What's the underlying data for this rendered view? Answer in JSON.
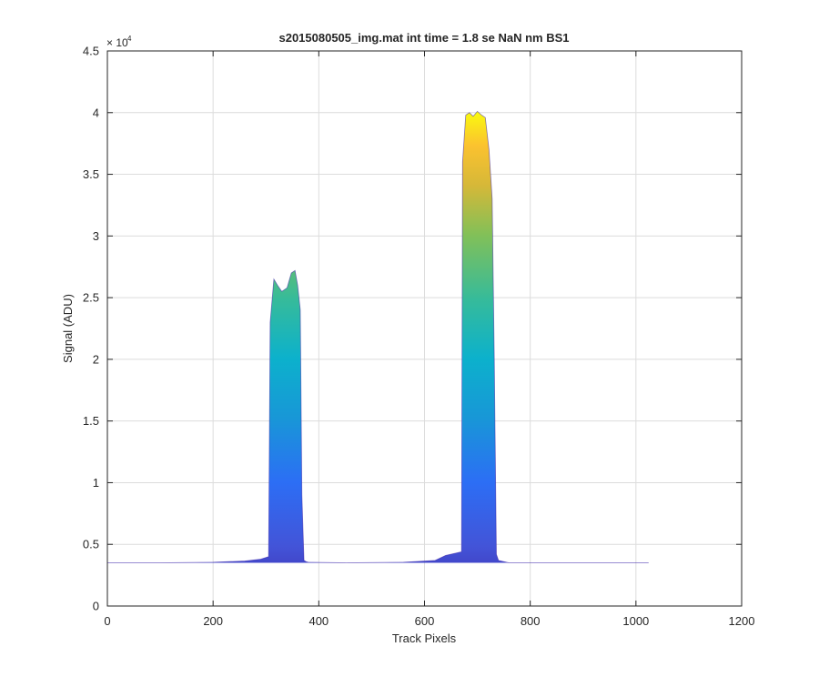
{
  "chart_data": {
    "type": "area",
    "title": "s2015080505_img.mat int time = 1.8 se  NaN nm BS1",
    "xlabel": "Track Pixels",
    "ylabel": "Signal (ADU)",
    "xlim": [
      0,
      1200
    ],
    "ylim": [
      0,
      45000
    ],
    "xticks": [
      0,
      200,
      400,
      600,
      800,
      1000,
      1200
    ],
    "yticks": [
      0,
      5000,
      10000,
      15000,
      20000,
      25000,
      30000,
      35000,
      40000,
      45000
    ],
    "ytick_labels": [
      "0",
      "0.5",
      "1",
      "1.5",
      "2",
      "2.5",
      "3",
      "3.5",
      "4",
      "4.5"
    ],
    "y_exponent_base": "× 10",
    "y_exponent_power": "4",
    "grid": true,
    "colormap": "parula",
    "baseline": 3500,
    "series": [
      {
        "x": [
          0,
          100,
          200,
          260,
          290,
          305,
          308,
          315,
          322,
          330,
          340,
          348,
          355,
          360,
          365,
          368,
          372,
          376,
          380,
          450,
          560,
          620,
          640,
          660,
          670,
          672,
          678,
          685,
          692,
          700,
          708,
          715,
          722,
          728,
          732,
          736,
          740,
          760,
          900,
          1024
        ],
        "y": [
          3500,
          3500,
          3550,
          3650,
          3800,
          4000,
          23000,
          26500,
          26000,
          25500,
          25800,
          27000,
          27200,
          26000,
          24000,
          9000,
          3700,
          3600,
          3550,
          3500,
          3550,
          3700,
          4100,
          4300,
          4400,
          36000,
          39800,
          40000,
          39700,
          40100,
          39800,
          39600,
          37000,
          33000,
          20000,
          4200,
          3700,
          3500,
          3500,
          3500
        ]
      }
    ]
  }
}
